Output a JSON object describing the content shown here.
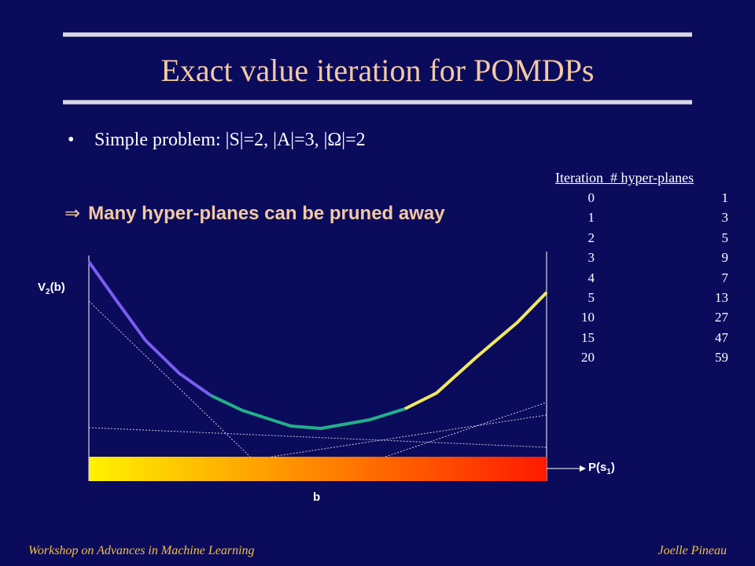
{
  "slide": {
    "title": "Exact value iteration for POMDPs",
    "bullet_marker": "•",
    "bullet_text": "Simple problem: |S|=2, |A|=3, |Ω|=2",
    "implies_symbol": "⇒",
    "implies_text": "Many hyper-planes can be pruned away"
  },
  "table": {
    "header": "Iteration  # hyper-planes",
    "rows": [
      {
        "iteration": "0",
        "hyperplanes": "1"
      },
      {
        "iteration": "1",
        "hyperplanes": "3"
      },
      {
        "iteration": "2",
        "hyperplanes": "5"
      },
      {
        "iteration": "3",
        "hyperplanes": "9"
      },
      {
        "iteration": "4",
        "hyperplanes": "7"
      },
      {
        "iteration": "5",
        "hyperplanes": "13"
      },
      {
        "iteration": "10",
        "hyperplanes": "27"
      },
      {
        "iteration": "15",
        "hyperplanes": "47"
      },
      {
        "iteration": "20",
        "hyperplanes": "59"
      }
    ]
  },
  "plot": {
    "y_label_main": "V",
    "y_label_sub": "2",
    "y_label_tail": "(b)",
    "x_label": "b",
    "axis_label_main": "P(s",
    "axis_label_sub": "1",
    "axis_label_tail": ")",
    "colors": {
      "segment_left": "#7b5cf0",
      "segment_middle": "#22b08a",
      "segment_right": "#f2e860",
      "gradient_start": "#fff200",
      "gradient_end": "#ff1a00",
      "pruned_lines": "#c8c8e0"
    }
  },
  "footer": {
    "left": "Workshop on Advances in Machine Learning",
    "right": "Joelle Pineau"
  }
}
